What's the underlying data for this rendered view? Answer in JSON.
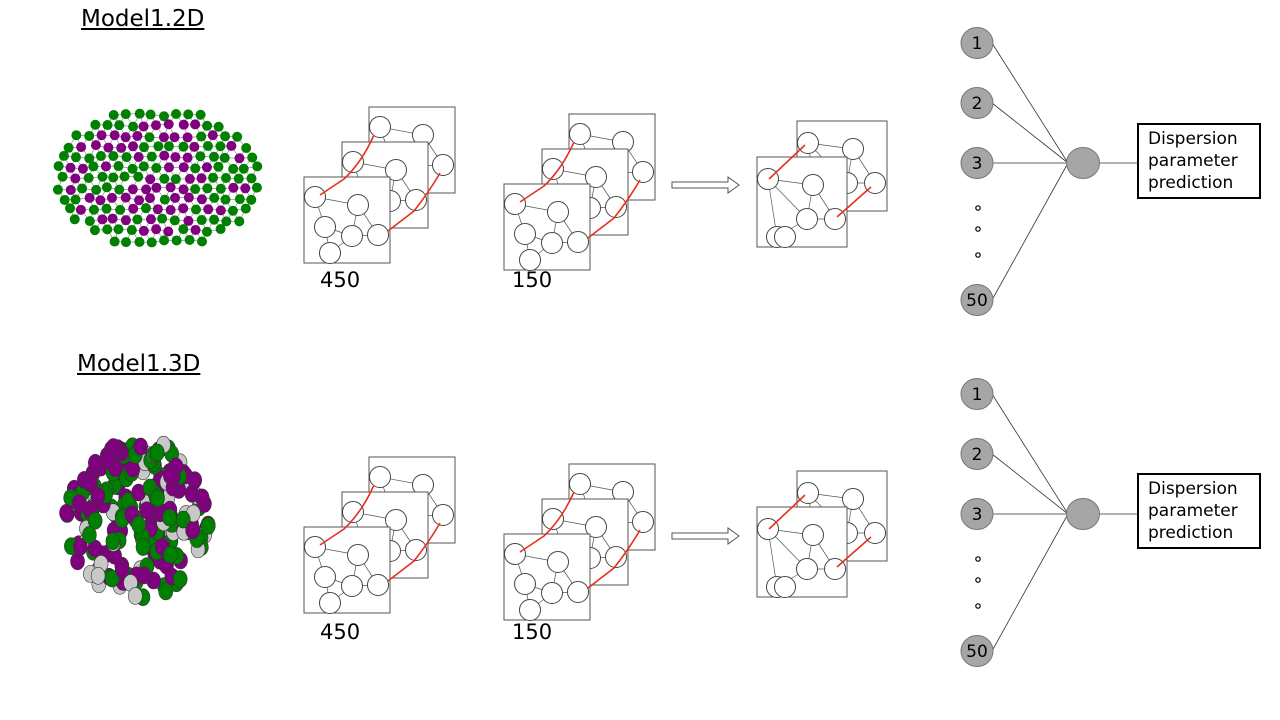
{
  "models": [
    {
      "title": "Model1.2D",
      "graph_type": "2d-lattice",
      "stack_counts": [
        "450",
        "150"
      ],
      "input_nodes": [
        "1",
        "2",
        "3",
        "50"
      ],
      "output_lines": [
        "Dispersion",
        "parameter",
        "prediction"
      ]
    },
    {
      "title": "Model1.3D",
      "graph_type": "3d-cluster",
      "stack_counts": [
        "450",
        "150"
      ],
      "input_nodes": [
        "1",
        "2",
        "3",
        "50"
      ],
      "output_lines": [
        "Dispersion",
        "parameter",
        "prediction"
      ]
    }
  ],
  "colors": {
    "purple": "#800080",
    "green": "#008000",
    "gray": "#c8c8c8",
    "edge_red": "#e8301c",
    "neuron_fill": "#a6a6a6"
  },
  "icons": [
    "right-arrow-icon",
    "graph-frame-icon",
    "neuron-icon"
  ]
}
